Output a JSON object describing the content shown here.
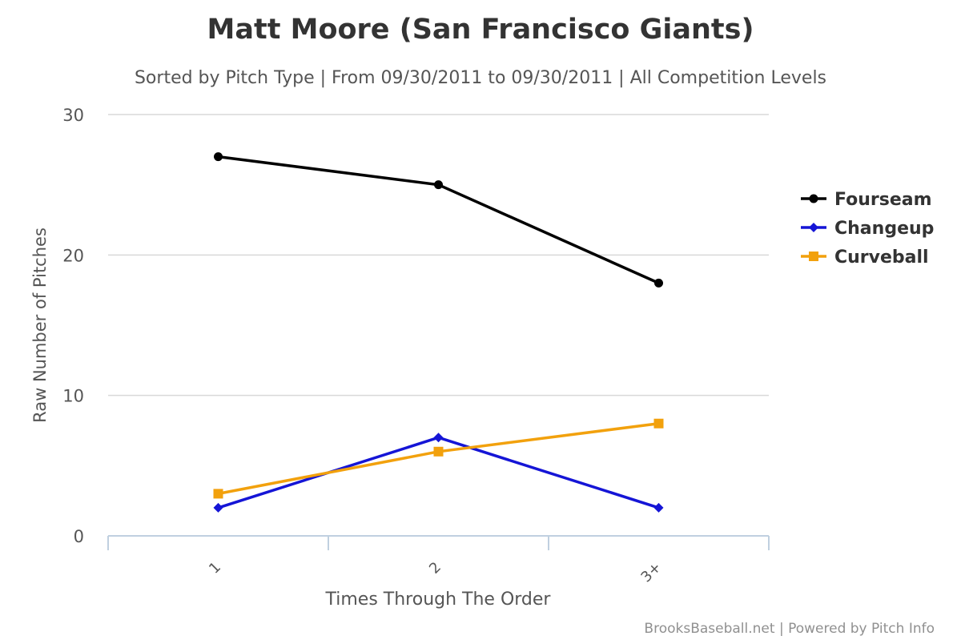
{
  "chart_data": {
    "type": "line",
    "title": "Matt Moore (San Francisco Giants)",
    "subtitle": "Sorted by Pitch Type | From 09/30/2011 to 09/30/2011 | All Competition Levels",
    "xlabel": "Times Through The Order",
    "ylabel": "Raw Number of Pitches",
    "categories": [
      "1",
      "2",
      "3+"
    ],
    "ylim": [
      0,
      30
    ],
    "yticks": [
      0,
      10,
      20,
      30
    ],
    "grid": true,
    "legend_position": "right",
    "series": [
      {
        "name": "Fourseam",
        "values": [
          27,
          25,
          18
        ],
        "color": "#000000",
        "marker": "circle"
      },
      {
        "name": "Changeup",
        "values": [
          2,
          7,
          2
        ],
        "color": "#1515d6",
        "marker": "diamond"
      },
      {
        "name": "Curveball",
        "values": [
          3,
          6,
          8
        ],
        "color": "#f2a10d",
        "marker": "square"
      }
    ],
    "credits": "BrooksBaseball.net | Powered by Pitch Info"
  }
}
